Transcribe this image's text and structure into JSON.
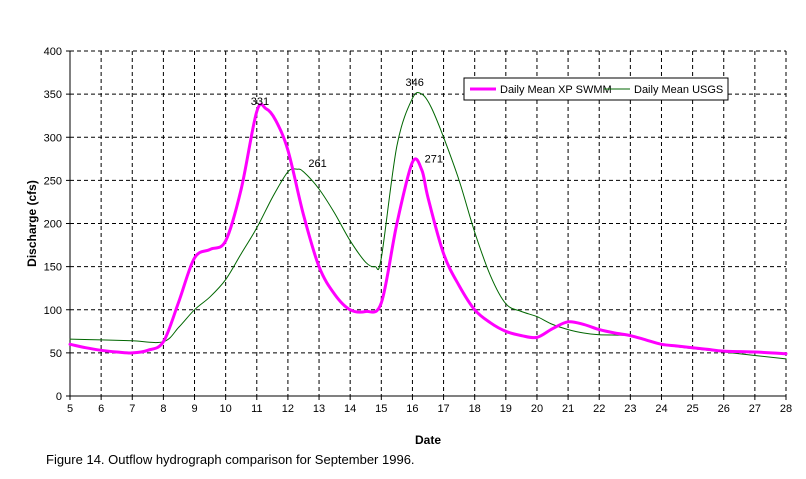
{
  "chart_data": {
    "type": "line",
    "xlabel": "Date",
    "ylabel": "Discharge (cfs)",
    "xlim": [
      5,
      28
    ],
    "ylim": [
      0,
      400
    ],
    "xticks": [
      5,
      6,
      7,
      8,
      9,
      10,
      11,
      12,
      13,
      14,
      15,
      16,
      17,
      18,
      19,
      20,
      21,
      22,
      23,
      24,
      25,
      26,
      27,
      28
    ],
    "yticks": [
      0,
      50,
      100,
      150,
      200,
      250,
      300,
      350,
      400
    ],
    "grid": true,
    "legend_position": "top-right",
    "series": [
      {
        "name": "Daily Mean XP SWMM",
        "color": "#ff00ff",
        "points": [
          [
            5,
            60
          ],
          [
            5.5,
            56
          ],
          [
            6,
            53
          ],
          [
            6.5,
            51
          ],
          [
            7,
            50
          ],
          [
            7.5,
            53
          ],
          [
            8,
            63
          ],
          [
            8.5,
            110
          ],
          [
            9,
            160
          ],
          [
            9.5,
            170
          ],
          [
            10,
            180
          ],
          [
            10.5,
            240
          ],
          [
            11,
            330
          ],
          [
            11.3,
            333
          ],
          [
            11.6,
            320
          ],
          [
            12,
            285
          ],
          [
            12.5,
            210
          ],
          [
            13,
            150
          ],
          [
            13.5,
            118
          ],
          [
            14,
            100
          ],
          [
            14.5,
            98
          ],
          [
            15,
            108
          ],
          [
            15.5,
            200
          ],
          [
            16,
            271
          ],
          [
            16.3,
            262
          ],
          [
            16.5,
            230
          ],
          [
            17,
            165
          ],
          [
            17.5,
            128
          ],
          [
            18,
            100
          ],
          [
            18.5,
            85
          ],
          [
            19,
            75
          ],
          [
            19.5,
            70
          ],
          [
            20,
            68
          ],
          [
            20.5,
            78
          ],
          [
            21,
            86
          ],
          [
            21.5,
            83
          ],
          [
            22,
            77
          ],
          [
            22.5,
            73
          ],
          [
            23,
            70
          ],
          [
            23.5,
            65
          ],
          [
            24,
            60
          ],
          [
            24.5,
            58
          ],
          [
            25,
            56
          ],
          [
            25.5,
            54
          ],
          [
            26,
            52
          ],
          [
            27,
            51
          ],
          [
            28,
            49
          ]
        ]
      },
      {
        "name": "Daily Mean USGS",
        "color": "#006600",
        "points": [
          [
            5,
            66
          ],
          [
            6,
            65
          ],
          [
            7,
            64
          ],
          [
            8,
            63
          ],
          [
            8.5,
            80
          ],
          [
            9,
            100
          ],
          [
            9.5,
            115
          ],
          [
            10,
            135
          ],
          [
            10.5,
            165
          ],
          [
            11,
            195
          ],
          [
            11.5,
            230
          ],
          [
            12,
            260
          ],
          [
            12.3,
            263
          ],
          [
            12.5,
            260
          ],
          [
            13,
            240
          ],
          [
            13.5,
            212
          ],
          [
            14,
            180
          ],
          [
            14.5,
            155
          ],
          [
            14.8,
            150
          ],
          [
            15,
            160
          ],
          [
            15.5,
            290
          ],
          [
            16,
            345
          ],
          [
            16.3,
            350
          ],
          [
            16.6,
            335
          ],
          [
            17,
            300
          ],
          [
            17.5,
            250
          ],
          [
            18,
            190
          ],
          [
            18.5,
            140
          ],
          [
            19,
            107
          ],
          [
            19.5,
            98
          ],
          [
            20,
            92
          ],
          [
            20.5,
            83
          ],
          [
            21,
            77
          ],
          [
            21.5,
            73
          ],
          [
            22,
            71
          ],
          [
            23,
            70
          ],
          [
            23.5,
            65
          ],
          [
            24,
            60
          ],
          [
            24.5,
            57
          ],
          [
            25,
            55
          ],
          [
            26,
            51
          ],
          [
            27,
            47
          ],
          [
            28,
            43
          ]
        ]
      }
    ],
    "annotations": [
      {
        "text": "331",
        "x": 11.1,
        "y": 333
      },
      {
        "text": "261",
        "x": 12.4,
        "y": 263
      },
      {
        "text": "346",
        "x": 16.2,
        "y": 350
      },
      {
        "text": "271",
        "x": 16.2,
        "y": 271
      }
    ]
  },
  "caption": "Figure 14.  Outflow hydrograph comparison for September 1996."
}
